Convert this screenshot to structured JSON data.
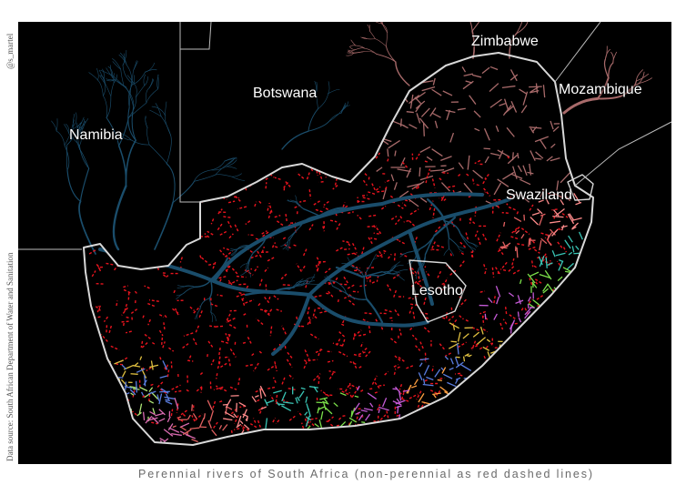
{
  "map": {
    "countries": [
      {
        "id": "namibia",
        "name": "Namibia"
      },
      {
        "id": "botswana",
        "name": "Botswana"
      },
      {
        "id": "zimbabwe",
        "name": "Zimbabwe"
      },
      {
        "id": "mozambique",
        "name": "Mozambique"
      },
      {
        "id": "swaziland",
        "name": "Swaziland"
      },
      {
        "id": "lesotho",
        "name": "Lesotho"
      }
    ],
    "legend": {
      "perennial_style": "solid colored lines by catchment",
      "non_perennial_style": "red dashed lines"
    },
    "colors": {
      "background": "#000000",
      "border": "#d8d8d8",
      "non_perennial": "#e8141e",
      "orange_river": "#1a4d6b",
      "limpopo": "#a86a6a",
      "catchments": [
        "#e06060",
        "#ff8c8c",
        "#39c5b5",
        "#7be04a",
        "#c45ad6",
        "#e0c040",
        "#5a7de0",
        "#ff9f40",
        "#b0e878",
        "#d96ab0"
      ]
    }
  },
  "credits": {
    "author": "@s_martel",
    "source": "Data source: South African Department of Water and Sanitation"
  },
  "caption": "Perennial rivers of South Africa (non-perennial as red dashed lines)"
}
